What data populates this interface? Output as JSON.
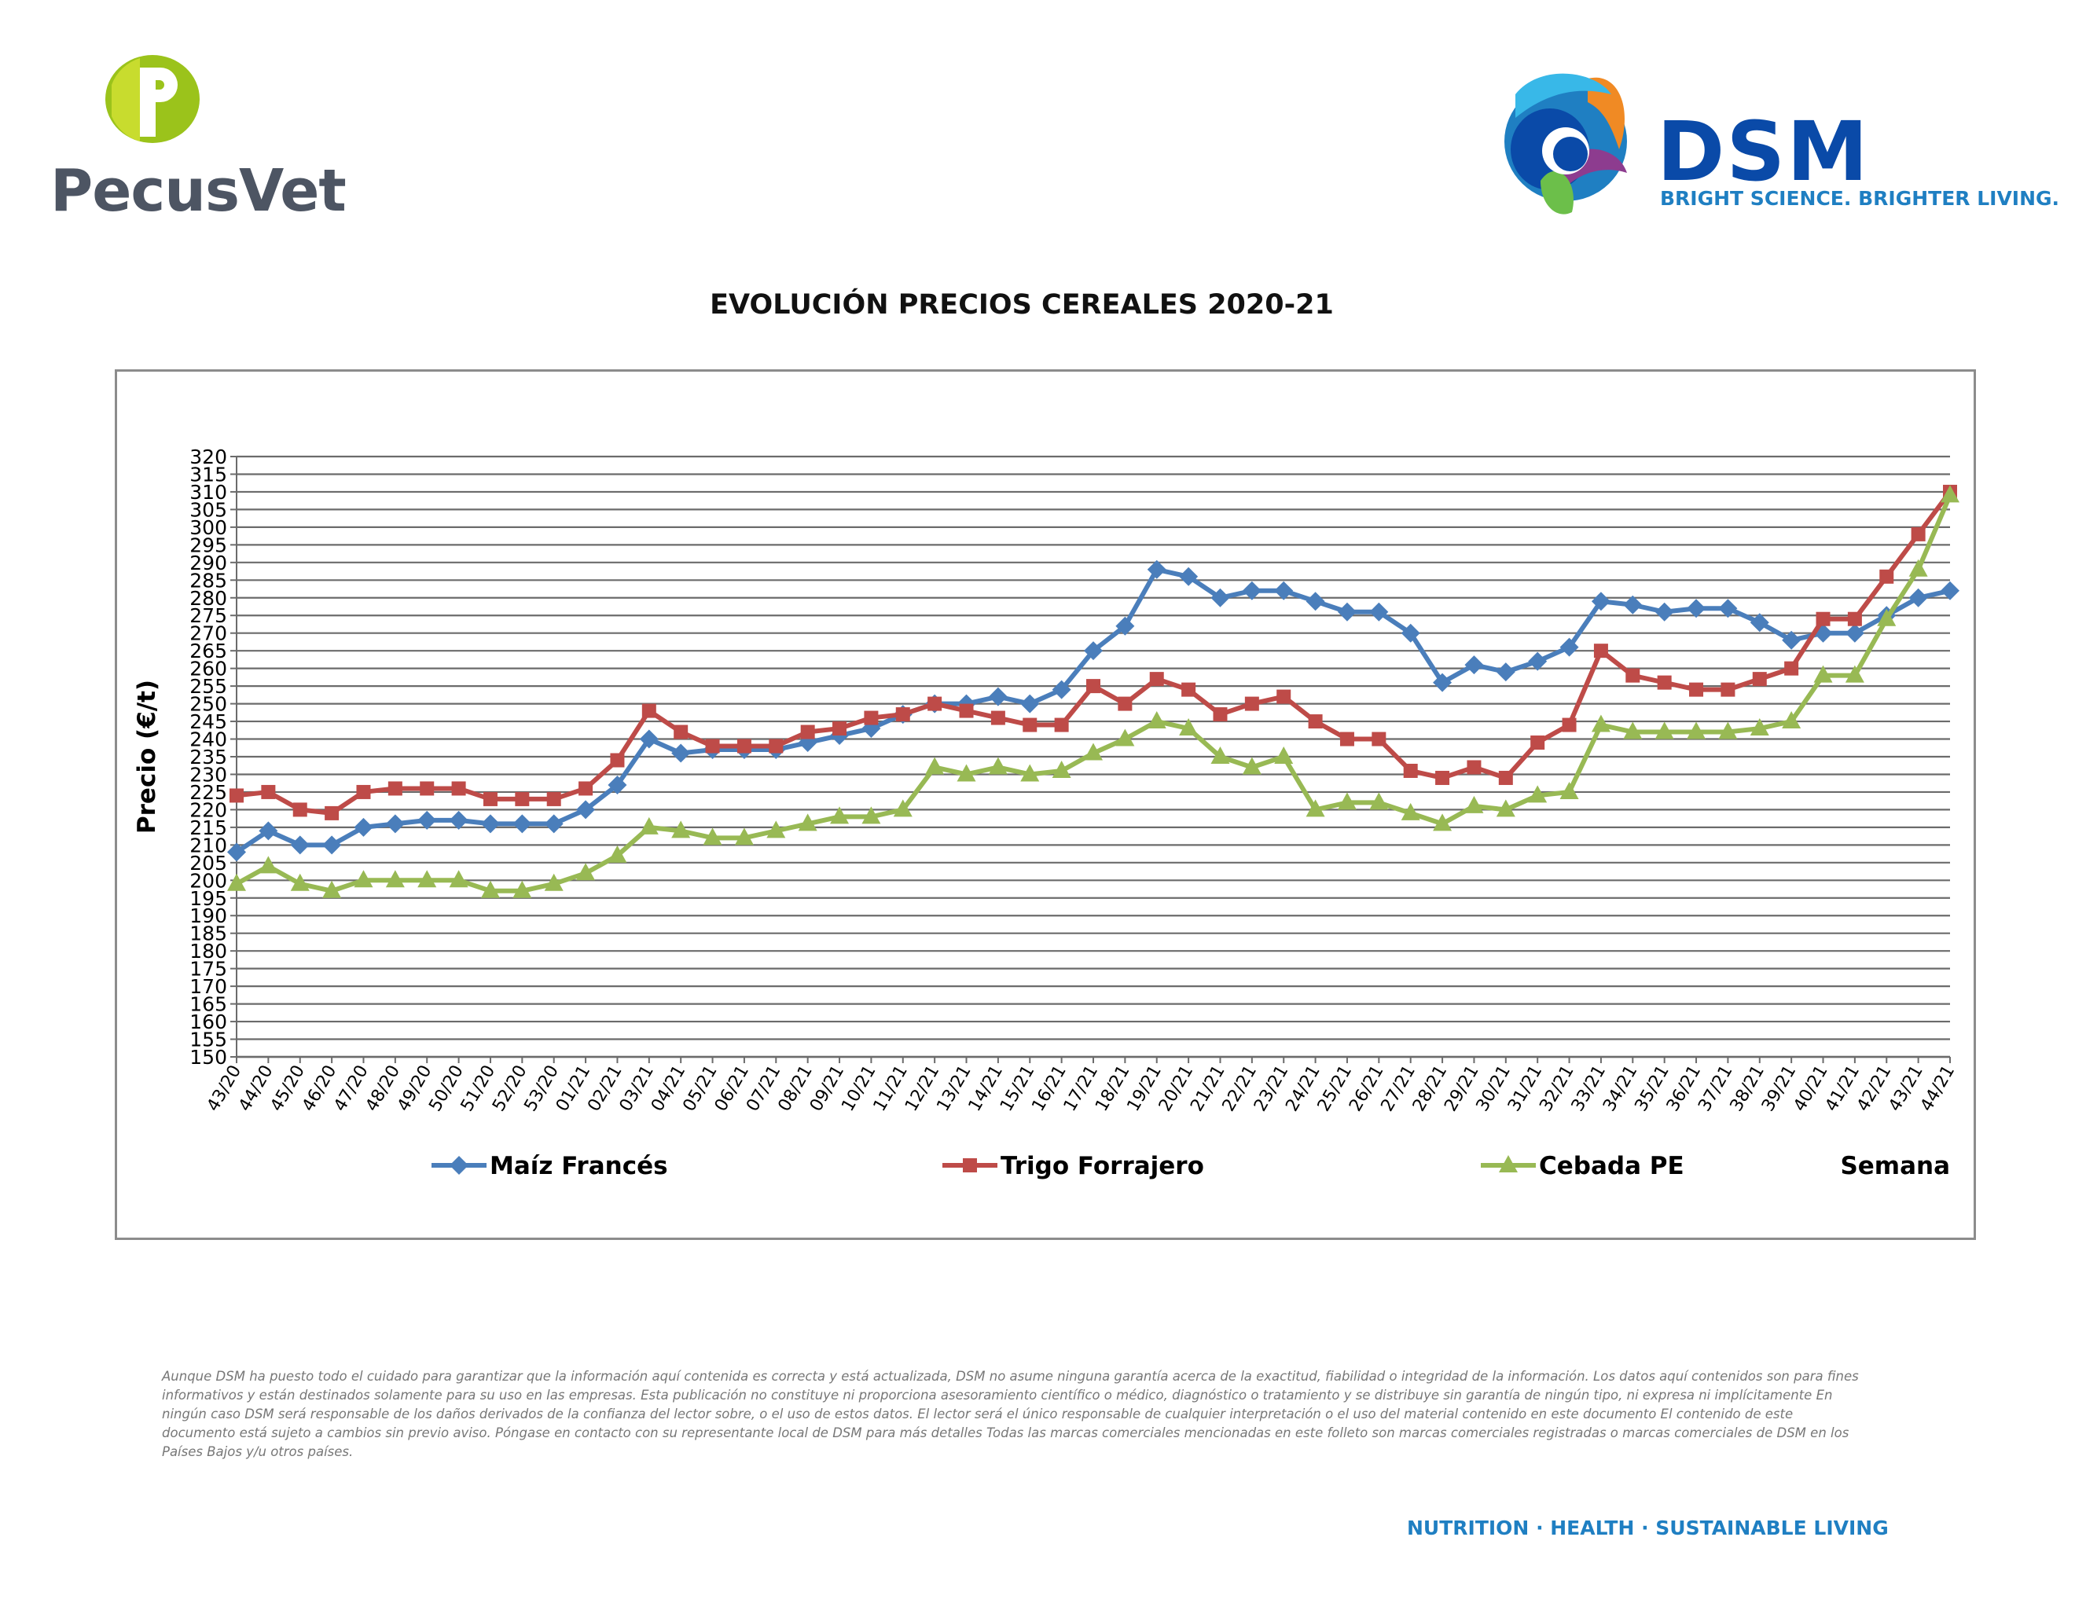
{
  "header": {
    "left_logo": {
      "name": "PecusVet",
      "icon": "pecusvet-p-logo-icon",
      "colors": {
        "green": "#9bc31b",
        "gray": "#4d5563"
      }
    },
    "right_logo": {
      "name": "DSM",
      "tagline": "BRIGHT SCIENCE. BRIGHTER LIVING.",
      "icon": "dsm-swirl-logo-icon",
      "colors": {
        "blue": "#0a4aa8",
        "light_blue": "#1f7fc2"
      }
    }
  },
  "chart_data": {
    "type": "line",
    "title": "EVOLUCIÓN PRECIOS CEREALES 2020-21",
    "xlabel": "Semana",
    "ylabel": "Precio (€/t)",
    "ylim": [
      150,
      320
    ],
    "ytick_step": 5,
    "grid": true,
    "legend_position": "bottom",
    "categories": [
      "43/20",
      "44/20",
      "45/20",
      "46/20",
      "47/20",
      "48/20",
      "49/20",
      "50/20",
      "51/20",
      "52/20",
      "53/20",
      "01/21",
      "02/21",
      "03/21",
      "04/21",
      "05/21",
      "06/21",
      "07/21",
      "08/21",
      "09/21",
      "10/21",
      "11/21",
      "12/21",
      "13/21",
      "14/21",
      "15/21",
      "16/21",
      "17/21",
      "18/21",
      "19/21",
      "20/21",
      "21/21",
      "22/21",
      "23/21",
      "24/21",
      "25/21",
      "26/21",
      "27/21",
      "28/21",
      "29/21",
      "30/21",
      "31/21",
      "32/21",
      "33/21",
      "34/21",
      "35/21",
      "36/21",
      "37/21",
      "38/21",
      "39/21",
      "40/21",
      "41/21",
      "42/21",
      "43/21",
      "44/21"
    ],
    "series": [
      {
        "name": "Maíz Francés",
        "color": "#4a7ebb",
        "marker": "diamond",
        "values": [
          208,
          214,
          210,
          210,
          215,
          216,
          217,
          217,
          216,
          216,
          216,
          220,
          227,
          240,
          236,
          237,
          237,
          237,
          239,
          241,
          243,
          247,
          250,
          250,
          252,
          250,
          254,
          265,
          272,
          288,
          286,
          280,
          282,
          282,
          279,
          276,
          276,
          270,
          256,
          261,
          259,
          262,
          266,
          279,
          278,
          276,
          277,
          277,
          273,
          268,
          270,
          270,
          275,
          280,
          282
        ]
      },
      {
        "name": "Trigo Forrajero",
        "color": "#be4b48",
        "marker": "square",
        "values": [
          224,
          225,
          220,
          219,
          225,
          226,
          226,
          226,
          223,
          223,
          223,
          226,
          234,
          248,
          242,
          238,
          238,
          238,
          242,
          243,
          246,
          247,
          250,
          248,
          246,
          244,
          244,
          255,
          250,
          257,
          254,
          247,
          250,
          252,
          245,
          240,
          240,
          231,
          229,
          232,
          229,
          239,
          244,
          265,
          258,
          256,
          254,
          254,
          257,
          260,
          274,
          274,
          286,
          298,
          310
        ]
      },
      {
        "name": "Cebada PE",
        "color": "#98b954",
        "marker": "triangle",
        "values": [
          199,
          204,
          199,
          197,
          200,
          200,
          200,
          200,
          197,
          197,
          199,
          202,
          207,
          215,
          214,
          212,
          212,
          214,
          216,
          218,
          218,
          220,
          232,
          230,
          232,
          230,
          231,
          236,
          240,
          245,
          243,
          235,
          232,
          235,
          220,
          222,
          222,
          219,
          216,
          221,
          220,
          224,
          225,
          244,
          242,
          242,
          242,
          242,
          243,
          245,
          258,
          258,
          274,
          288,
          309
        ]
      }
    ]
  },
  "footer": {
    "disclaimer": "Aunque DSM ha puesto todo el cuidado para garantizar que la información aquí contenida es correcta y está actualizada, DSM no asume ninguna garantía acerca de la exactitud, fiabilidad o integridad de la información. Los datos aquí contenidos son para fines informativos y están destinados solamente para su uso en las empresas. Esta publicación no constituye ni proporciona asesoramiento científico o médico, diagnóstico o tratamiento y se distribuye sin garantía de ningún tipo, ni expresa ni implícitamente En ningún caso DSM será responsable de los daños derivados de la confianza del lector sobre, o el uso de estos datos. El lector será el único responsable de cualquier interpretación o el uso del material contenido en este documento El contenido de este documento está sujeto a cambios sin previo aviso. Póngase en contacto con su representante local de DSM para más detalles Todas las marcas comerciales mencionadas en este folleto son marcas comerciales registradas o marcas comerciales de DSM en los Países Bajos y/u otros países.",
    "slogan": "NUTRITION · HEALTH · SUSTAINABLE LIVING"
  }
}
